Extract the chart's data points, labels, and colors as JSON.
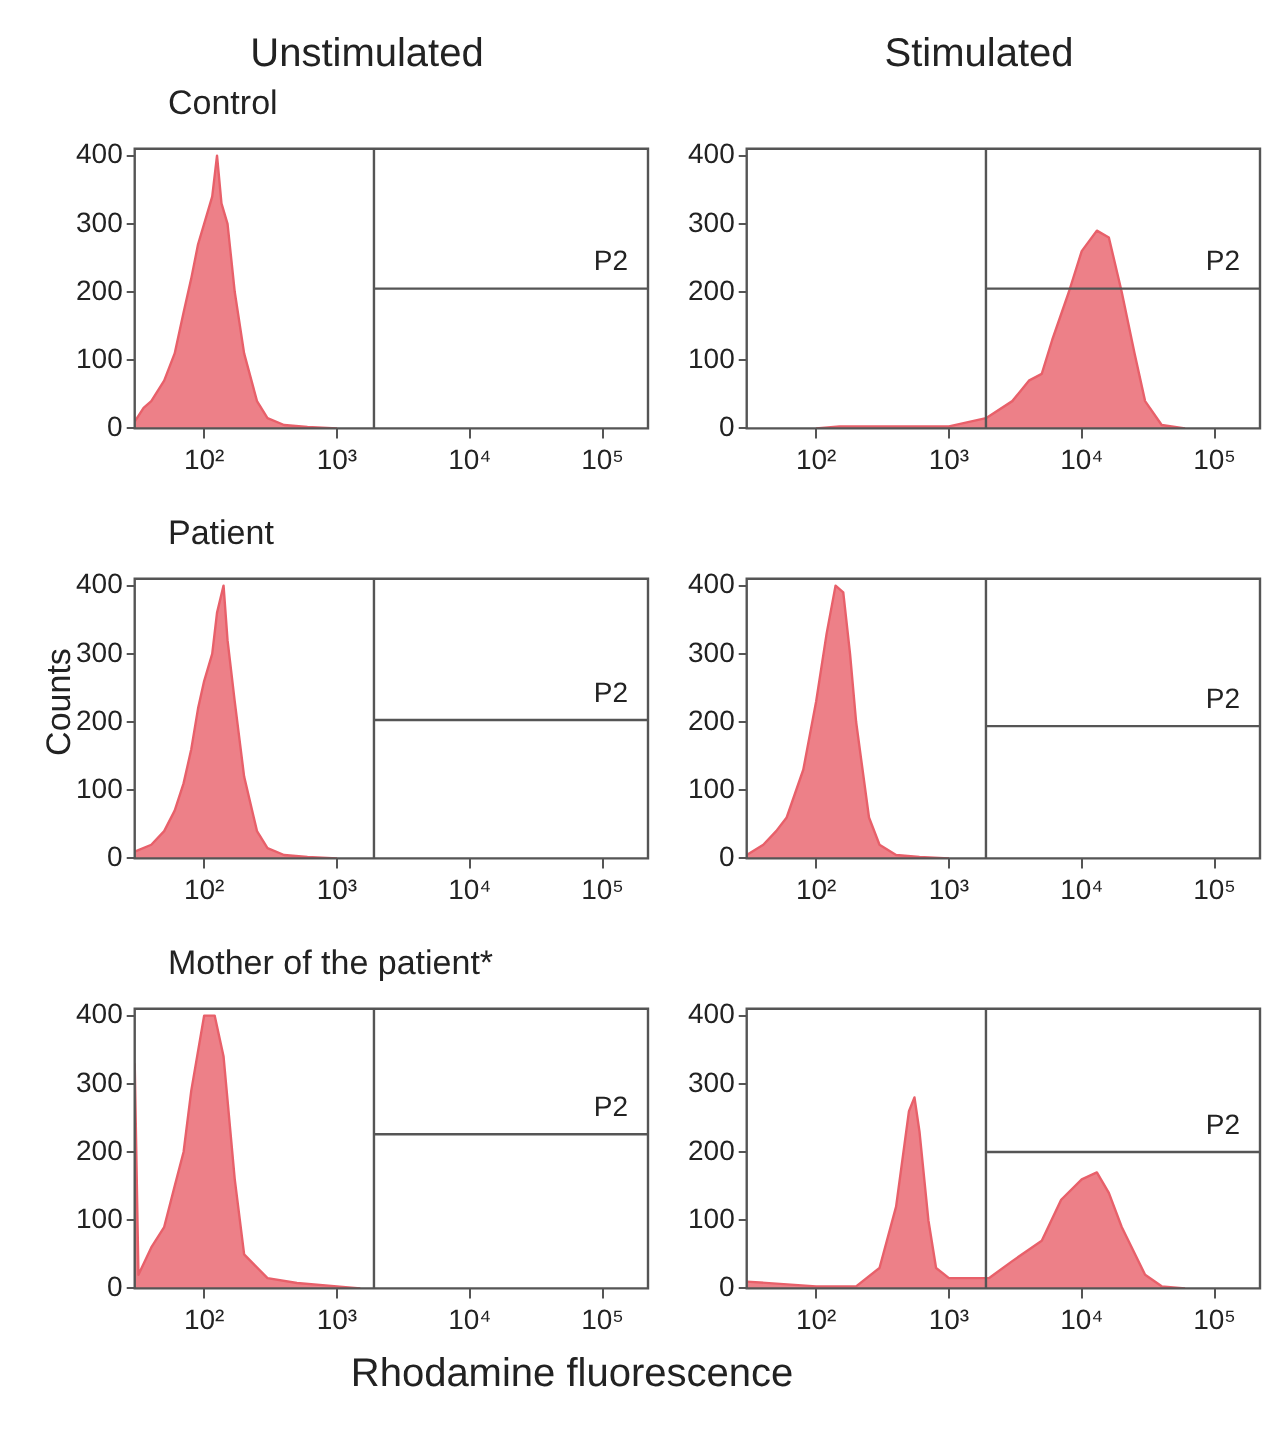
{
  "chart_data": [
    {
      "type": "area",
      "title": "Unstimulated",
      "subtitle": "Control",
      "log": "x",
      "xlim": [
        30,
        220000
      ],
      "ylim": [
        0,
        410
      ],
      "xticks": [
        {
          "value": 100,
          "label": "10²"
        },
        {
          "value": 1000,
          "label": "10³"
        },
        {
          "value": 10000,
          "label": "10⁴"
        },
        {
          "value": 100000,
          "label": "10⁵"
        }
      ],
      "yticks": [
        0,
        100,
        200,
        300,
        400
      ],
      "grid": false,
      "legend": false,
      "series": [
        {
          "color": "#e8606a",
          "x": [
            30,
            35,
            40,
            50,
            60,
            70,
            80,
            90,
            100,
            115,
            125,
            135,
            150,
            170,
            200,
            250,
            300,
            400,
            600,
            1000
          ],
          "values": [
            10,
            30,
            40,
            70,
            110,
            170,
            220,
            270,
            300,
            340,
            400,
            330,
            300,
            200,
            110,
            40,
            15,
            5,
            2,
            0
          ]
        }
      ],
      "ref_lines": [
        {
          "axis": "x",
          "value": 1900
        },
        {
          "axis": "y",
          "value": 205,
          "label": "P2"
        }
      ]
    },
    {
      "type": "area",
      "title": "Stimulated",
      "log": "x",
      "xlim": [
        30,
        220000
      ],
      "ylim": [
        0,
        410
      ],
      "xticks": [
        {
          "value": 100,
          "label": "10²"
        },
        {
          "value": 1000,
          "label": "10³"
        },
        {
          "value": 10000,
          "label": "10⁴"
        },
        {
          "value": 100000,
          "label": "10⁵"
        }
      ],
      "yticks": [
        0,
        100,
        200,
        300,
        400
      ],
      "grid": false,
      "legend": false,
      "series": [
        {
          "color": "#e8606a",
          "x": [
            100,
            150,
            300,
            1000,
            1900,
            3000,
            4000,
            5000,
            6000,
            8000,
            10000,
            13000,
            16000,
            20000,
            25000,
            30000,
            40000,
            60000
          ],
          "values": [
            0,
            3,
            3,
            3,
            15,
            40,
            70,
            80,
            130,
            200,
            260,
            290,
            280,
            200,
            110,
            40,
            5,
            0
          ]
        }
      ],
      "ref_lines": [
        {
          "axis": "x",
          "value": 1900
        },
        {
          "axis": "y",
          "value": 205,
          "label": "P2"
        }
      ]
    },
    {
      "type": "area",
      "subtitle": "Patient",
      "ylabel": "Counts",
      "log": "x",
      "xlim": [
        30,
        220000
      ],
      "ylim": [
        0,
        410
      ],
      "xticks": [
        {
          "value": 100,
          "label": "10²"
        },
        {
          "value": 1000,
          "label": "10³"
        },
        {
          "value": 10000,
          "label": "10⁴"
        },
        {
          "value": 100000,
          "label": "10⁵"
        }
      ],
      "yticks": [
        0,
        100,
        200,
        300,
        400
      ],
      "grid": false,
      "legend": false,
      "series": [
        {
          "color": "#e8606a",
          "x": [
            30,
            40,
            50,
            60,
            70,
            80,
            90,
            100,
            115,
            125,
            140,
            150,
            170,
            200,
            250,
            300,
            400,
            600,
            1000
          ],
          "values": [
            10,
            20,
            40,
            70,
            110,
            160,
            220,
            260,
            300,
            360,
            400,
            320,
            230,
            120,
            40,
            15,
            5,
            2,
            0
          ]
        }
      ],
      "ref_lines": [
        {
          "axis": "x",
          "value": 1900
        },
        {
          "axis": "y",
          "value": 203,
          "label": "P2"
        }
      ]
    },
    {
      "type": "area",
      "log": "x",
      "xlim": [
        30,
        220000
      ],
      "ylim": [
        0,
        410
      ],
      "xticks": [
        {
          "value": 100,
          "label": "10²"
        },
        {
          "value": 1000,
          "label": "10³"
        },
        {
          "value": 10000,
          "label": "10⁴"
        },
        {
          "value": 100000,
          "label": "10⁵"
        }
      ],
      "yticks": [
        0,
        100,
        200,
        300,
        400
      ],
      "grid": false,
      "legend": false,
      "series": [
        {
          "color": "#e8606a",
          "x": [
            30,
            40,
            50,
            60,
            80,
            100,
            120,
            140,
            160,
            180,
            200,
            250,
            300,
            400,
            600,
            1000
          ],
          "values": [
            5,
            20,
            40,
            60,
            130,
            230,
            330,
            400,
            390,
            300,
            200,
            60,
            20,
            5,
            2,
            0
          ]
        }
      ],
      "ref_lines": [
        {
          "axis": "x",
          "value": 1900
        },
        {
          "axis": "y",
          "value": 194,
          "label": "P2"
        }
      ]
    },
    {
      "type": "area",
      "subtitle": "Mother of the patient*",
      "xlabel": "Rhodamine fluorescence",
      "log": "x",
      "xlim": [
        30,
        220000
      ],
      "ylim": [
        0,
        410
      ],
      "xticks": [
        {
          "value": 100,
          "label": "10²"
        },
        {
          "value": 1000,
          "label": "10³"
        },
        {
          "value": 10000,
          "label": "10⁴"
        },
        {
          "value": 100000,
          "label": "10⁵"
        }
      ],
      "yticks": [
        0,
        100,
        200,
        300,
        400
      ],
      "grid": false,
      "legend": false,
      "series": [
        {
          "color": "#e8606a",
          "x": [
            30,
            32,
            40,
            50,
            60,
            70,
            80,
            100,
            120,
            140,
            170,
            200,
            300,
            500,
            1000,
            1500
          ],
          "values": [
            330,
            20,
            60,
            90,
            150,
            200,
            290,
            400,
            400,
            340,
            160,
            50,
            15,
            8,
            3,
            0
          ]
        }
      ],
      "ref_lines": [
        {
          "axis": "x",
          "value": 1900
        },
        {
          "axis": "y",
          "value": 226,
          "label": "P2"
        }
      ]
    },
    {
      "type": "area",
      "log": "x",
      "xlim": [
        30,
        220000
      ],
      "ylim": [
        0,
        410
      ],
      "xticks": [
        {
          "value": 100,
          "label": "10²"
        },
        {
          "value": 1000,
          "label": "10³"
        },
        {
          "value": 10000,
          "label": "10⁴"
        },
        {
          "value": 100000,
          "label": "10⁵"
        }
      ],
      "yticks": [
        0,
        100,
        200,
        300,
        400
      ],
      "grid": false,
      "legend": false,
      "series": [
        {
          "color": "#e8606a",
          "x": [
            30,
            100,
            200,
            300,
            400,
            500,
            550,
            600,
            700,
            800,
            1000,
            1500,
            2000,
            3000,
            5000,
            7000,
            10000,
            13000,
            16000,
            20000,
            30000,
            40000,
            60000
          ],
          "values": [
            10,
            3,
            3,
            30,
            120,
            260,
            280,
            230,
            100,
            30,
            15,
            15,
            15,
            40,
            70,
            130,
            160,
            170,
            140,
            90,
            20,
            3,
            0
          ]
        }
      ],
      "ref_lines": [
        {
          "axis": "x",
          "value": 1900
        },
        {
          "axis": "y",
          "value": 200,
          "label": "P2"
        }
      ]
    }
  ]
}
